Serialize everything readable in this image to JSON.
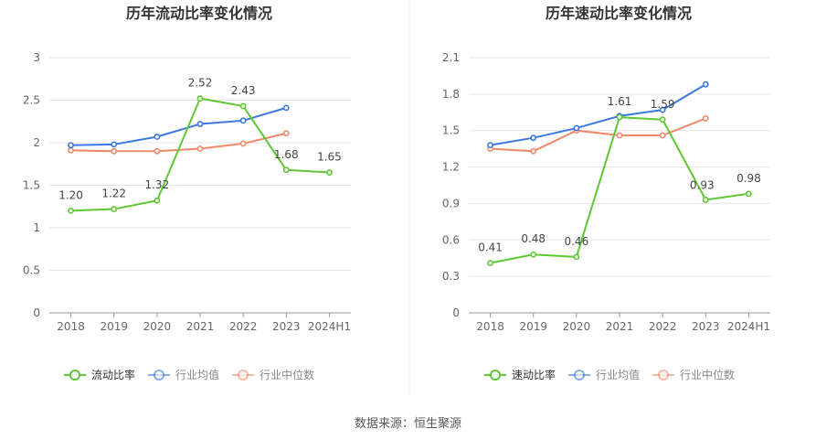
{
  "source_text": "数据来源：恒生聚源",
  "colors": {
    "green": "#5ec832",
    "blue": "#3b78e0",
    "orange": "#f0896a",
    "grid": "#e6e6e6",
    "axis": "#999999",
    "text": "#666666"
  },
  "chart_data": [
    {
      "type": "line",
      "title": "历年流动比率变化情况",
      "categories": [
        "2018",
        "2019",
        "2020",
        "2021",
        "2022",
        "2023",
        "2024H1"
      ],
      "yticks": [
        "0",
        "0.5",
        "1",
        "1.5",
        "2",
        "2.5",
        "3"
      ],
      "ylim": [
        0,
        3
      ],
      "grid": true,
      "legend_position": "bottom",
      "series": [
        {
          "name": "流动比率",
          "color": "#5ec832",
          "values": [
            1.2,
            1.22,
            1.32,
            2.52,
            2.43,
            1.68,
            1.65
          ],
          "labels": [
            "1.20",
            "1.22",
            "1.32",
            "2.52",
            "2.43",
            "1.68",
            "1.65"
          ]
        },
        {
          "name": "行业均值",
          "color": "#3b78e0",
          "values": [
            1.97,
            1.98,
            2.07,
            2.22,
            2.26,
            2.41,
            null
          ]
        },
        {
          "name": "行业中位数",
          "color": "#f0896a",
          "values": [
            1.91,
            1.9,
            1.9,
            1.93,
            1.99,
            2.11,
            null
          ]
        }
      ]
    },
    {
      "type": "line",
      "title": "历年速动比率变化情况",
      "categories": [
        "2018",
        "2019",
        "2020",
        "2021",
        "2022",
        "2023",
        "2024H1"
      ],
      "yticks": [
        "0",
        "0.3",
        "0.6",
        "0.9",
        "1.2",
        "1.5",
        "1.8",
        "2.1"
      ],
      "ylim": [
        0,
        2.1
      ],
      "grid": true,
      "legend_position": "bottom",
      "series": [
        {
          "name": "速动比率",
          "color": "#5ec832",
          "values": [
            0.41,
            0.48,
            0.46,
            1.61,
            1.59,
            0.93,
            0.98
          ],
          "labels": [
            "0.41",
            "0.48",
            "0.46",
            "1.61",
            "1.59",
            "0.93",
            "0.98"
          ]
        },
        {
          "name": "行业均值",
          "color": "#3b78e0",
          "values": [
            1.38,
            1.44,
            1.52,
            1.62,
            1.67,
            1.88,
            null
          ]
        },
        {
          "name": "行业中位数",
          "color": "#f0896a",
          "values": [
            1.35,
            1.33,
            1.5,
            1.46,
            1.46,
            1.6,
            null
          ]
        }
      ]
    }
  ]
}
